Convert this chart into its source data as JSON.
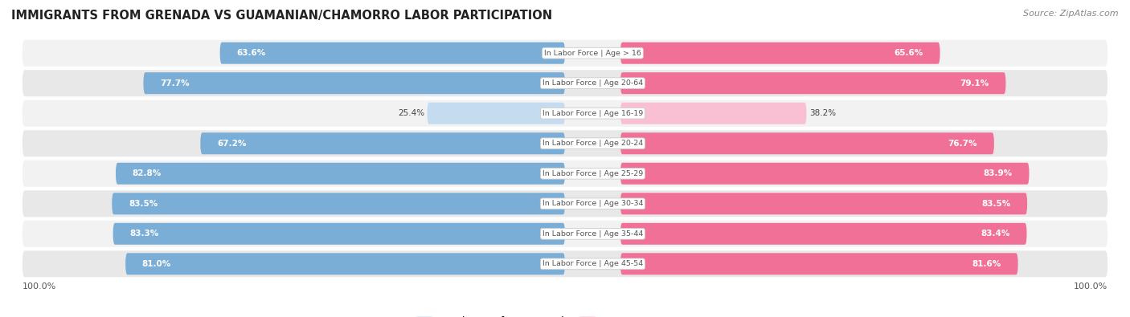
{
  "title": "IMMIGRANTS FROM GRENADA VS GUAMANIAN/CHAMORRO LABOR PARTICIPATION",
  "source": "Source: ZipAtlas.com",
  "categories": [
    "In Labor Force | Age > 16",
    "In Labor Force | Age 20-64",
    "In Labor Force | Age 16-19",
    "In Labor Force | Age 20-24",
    "In Labor Force | Age 25-29",
    "In Labor Force | Age 30-34",
    "In Labor Force | Age 35-44",
    "In Labor Force | Age 45-54"
  ],
  "grenada_values": [
    63.6,
    77.7,
    25.4,
    67.2,
    82.8,
    83.5,
    83.3,
    81.0
  ],
  "chamorro_values": [
    65.6,
    79.1,
    38.2,
    76.7,
    83.9,
    83.5,
    83.4,
    81.6
  ],
  "grenada_color": "#7aaed6",
  "grenada_color_light": "#c5dcf0",
  "chamorro_color": "#f07098",
  "chamorro_color_light": "#f9c0d4",
  "row_bg_color": "#e8e8e8",
  "row_bg_color2": "#f2f2f2",
  "label_color_white": "#ffffff",
  "label_color_dark": "#666666",
  "center_label_color": "#555555",
  "max_value": 100.0,
  "legend_grenada": "Immigrants from Grenada",
  "legend_chamorro": "Guamanian/Chamorro",
  "figsize": [
    14.06,
    3.95
  ],
  "dpi": 100
}
